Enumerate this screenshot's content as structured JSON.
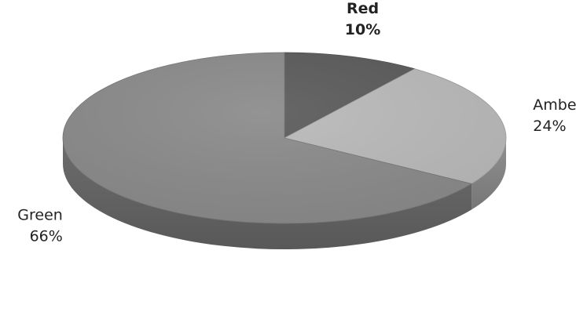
{
  "chart_data": {
    "type": "pie",
    "title": "",
    "style": "3d",
    "start_angle_deg": 0,
    "direction": "clockwise",
    "slices": [
      {
        "label": "Red",
        "value": 10,
        "value_label": "10%",
        "color": "#5a5a5a",
        "label_bold": true
      },
      {
        "label": "Amber",
        "value": 24,
        "value_label": "24%",
        "color": "#b9b9b9",
        "label_bold": false
      },
      {
        "label": "Green",
        "value": 66,
        "value_label": "66%",
        "color": "#8a8a8a",
        "label_bold": false
      }
    ]
  }
}
